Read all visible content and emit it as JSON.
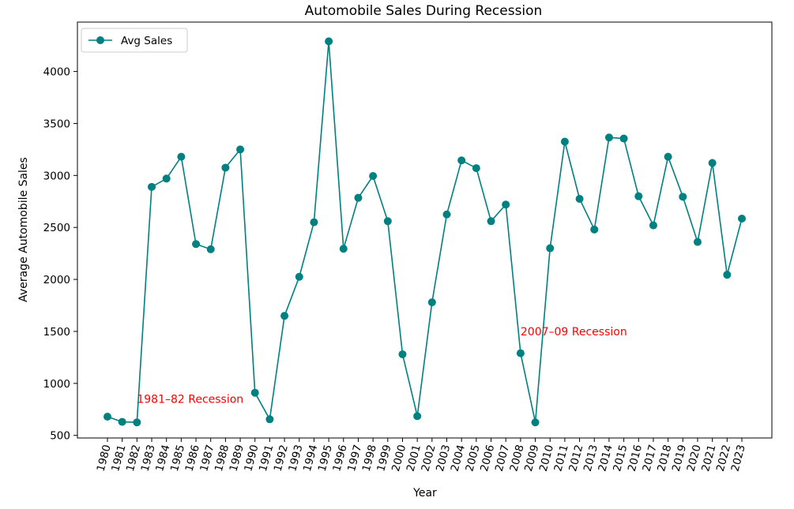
{
  "chart_data": {
    "type": "line",
    "title": "Automobile Sales During Recession",
    "xlabel": "Year",
    "ylabel": "Average Automobile Sales",
    "x": [
      "1980",
      "1981",
      "1982",
      "1983",
      "1984",
      "1985",
      "1986",
      "1987",
      "1988",
      "1989",
      "1990",
      "1991",
      "1992",
      "1993",
      "1994",
      "1995",
      "1996",
      "1997",
      "1998",
      "1999",
      "2000",
      "2001",
      "2002",
      "2003",
      "2004",
      "2005",
      "2006",
      "2007",
      "2008",
      "2009",
      "2010",
      "2011",
      "2012",
      "2013",
      "2014",
      "2015",
      "2016",
      "2017",
      "2018",
      "2019",
      "2020",
      "2021",
      "2022",
      "2023"
    ],
    "series": [
      {
        "name": "Avg Sales",
        "color": "#008080",
        "values": [
          680,
          630,
          625,
          2890,
          2970,
          3180,
          2340,
          2290,
          3075,
          3250,
          910,
          655,
          1650,
          2025,
          2550,
          4290,
          2295,
          2785,
          2995,
          2560,
          1280,
          685,
          1780,
          2625,
          3145,
          3070,
          2560,
          2720,
          1290,
          625,
          2300,
          3325,
          2775,
          2480,
          3365,
          3355,
          2800,
          2520,
          3180,
          2795,
          2360,
          3120,
          2045,
          2585
        ]
      }
    ],
    "yticks": [
      500,
      1000,
      1500,
      2000,
      2500,
      3000,
      3500,
      4000
    ],
    "ylim": [
      475,
      4475
    ],
    "grid": false,
    "legend": {
      "placement": "top-left",
      "entries": [
        "Avg Sales"
      ]
    },
    "annotations": [
      {
        "text": "1981–82 Recession",
        "x": "1982",
        "y": 850,
        "color": "#ff0000"
      },
      {
        "text": "2007–09 Recession",
        "x": "2008",
        "y": 1500,
        "color": "#ff0000"
      }
    ]
  }
}
